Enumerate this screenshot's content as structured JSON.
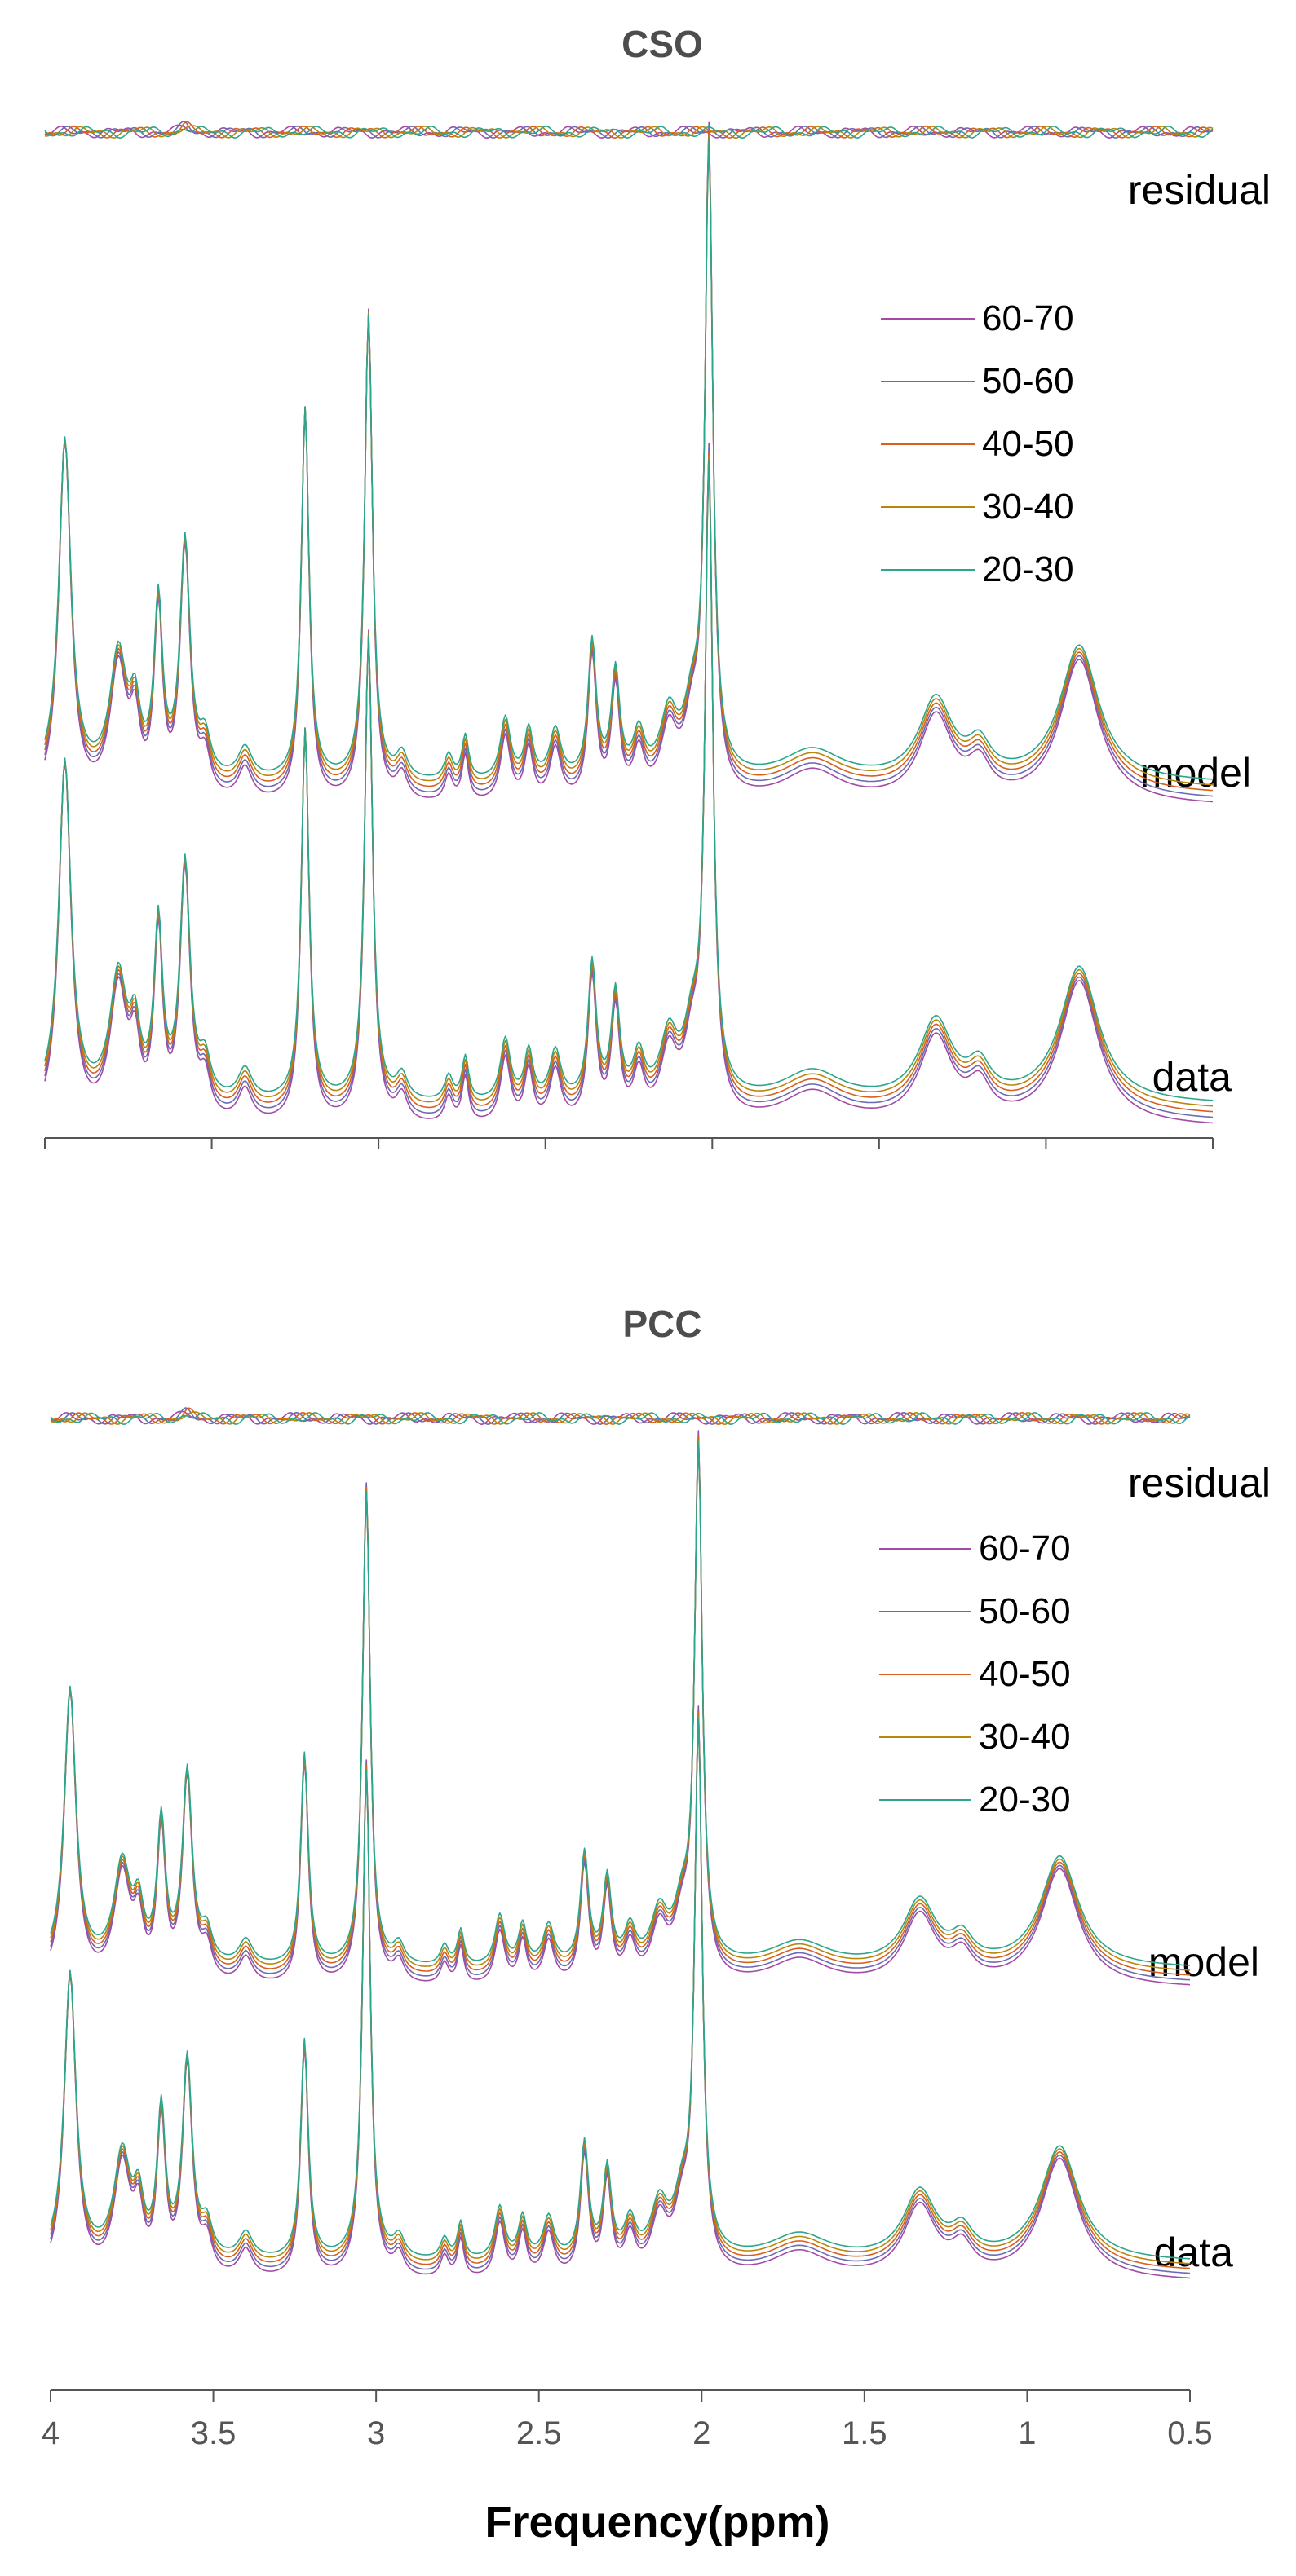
{
  "chart_data": [
    {
      "type": "line",
      "title": "CSO",
      "xlim": [
        4,
        0.5
      ],
      "x_reversed": true,
      "grid": false,
      "legend_position": "top-right",
      "trace_labels": {
        "residual": "residual",
        "model": "model",
        "data": "data"
      },
      "series": [
        {
          "name": "60-70",
          "color": "#a24aa6"
        },
        {
          "name": "50-60",
          "color": "#6a6ab5"
        },
        {
          "name": "40-50",
          "color": "#d95f1f"
        },
        {
          "name": "30-40",
          "color": "#b8860b"
        },
        {
          "name": "20-30",
          "color": "#2ca58d"
        }
      ]
    },
    {
      "type": "line",
      "title": "PCC",
      "xlim": [
        4,
        0.5
      ],
      "x_reversed": true,
      "grid": false,
      "legend_position": "top-right",
      "trace_labels": {
        "residual": "residual",
        "model": "model",
        "data": "data"
      },
      "series": [
        {
          "name": "60-70",
          "color": "#a24aa6"
        },
        {
          "name": "50-60",
          "color": "#6a6ab5"
        },
        {
          "name": "40-50",
          "color": "#d95f1f"
        },
        {
          "name": "30-40",
          "color": "#b8860b"
        },
        {
          "name": "20-30",
          "color": "#2ca58d"
        }
      ],
      "xticks": [
        4,
        3.5,
        3,
        2.5,
        2,
        1.5,
        1,
        0.5
      ],
      "xtick_labels": [
        "4",
        "3.5",
        "3",
        "2.5",
        "2",
        "1.5",
        "1",
        "0.5"
      ],
      "xlabel": "Frequency(ppm)"
    }
  ]
}
